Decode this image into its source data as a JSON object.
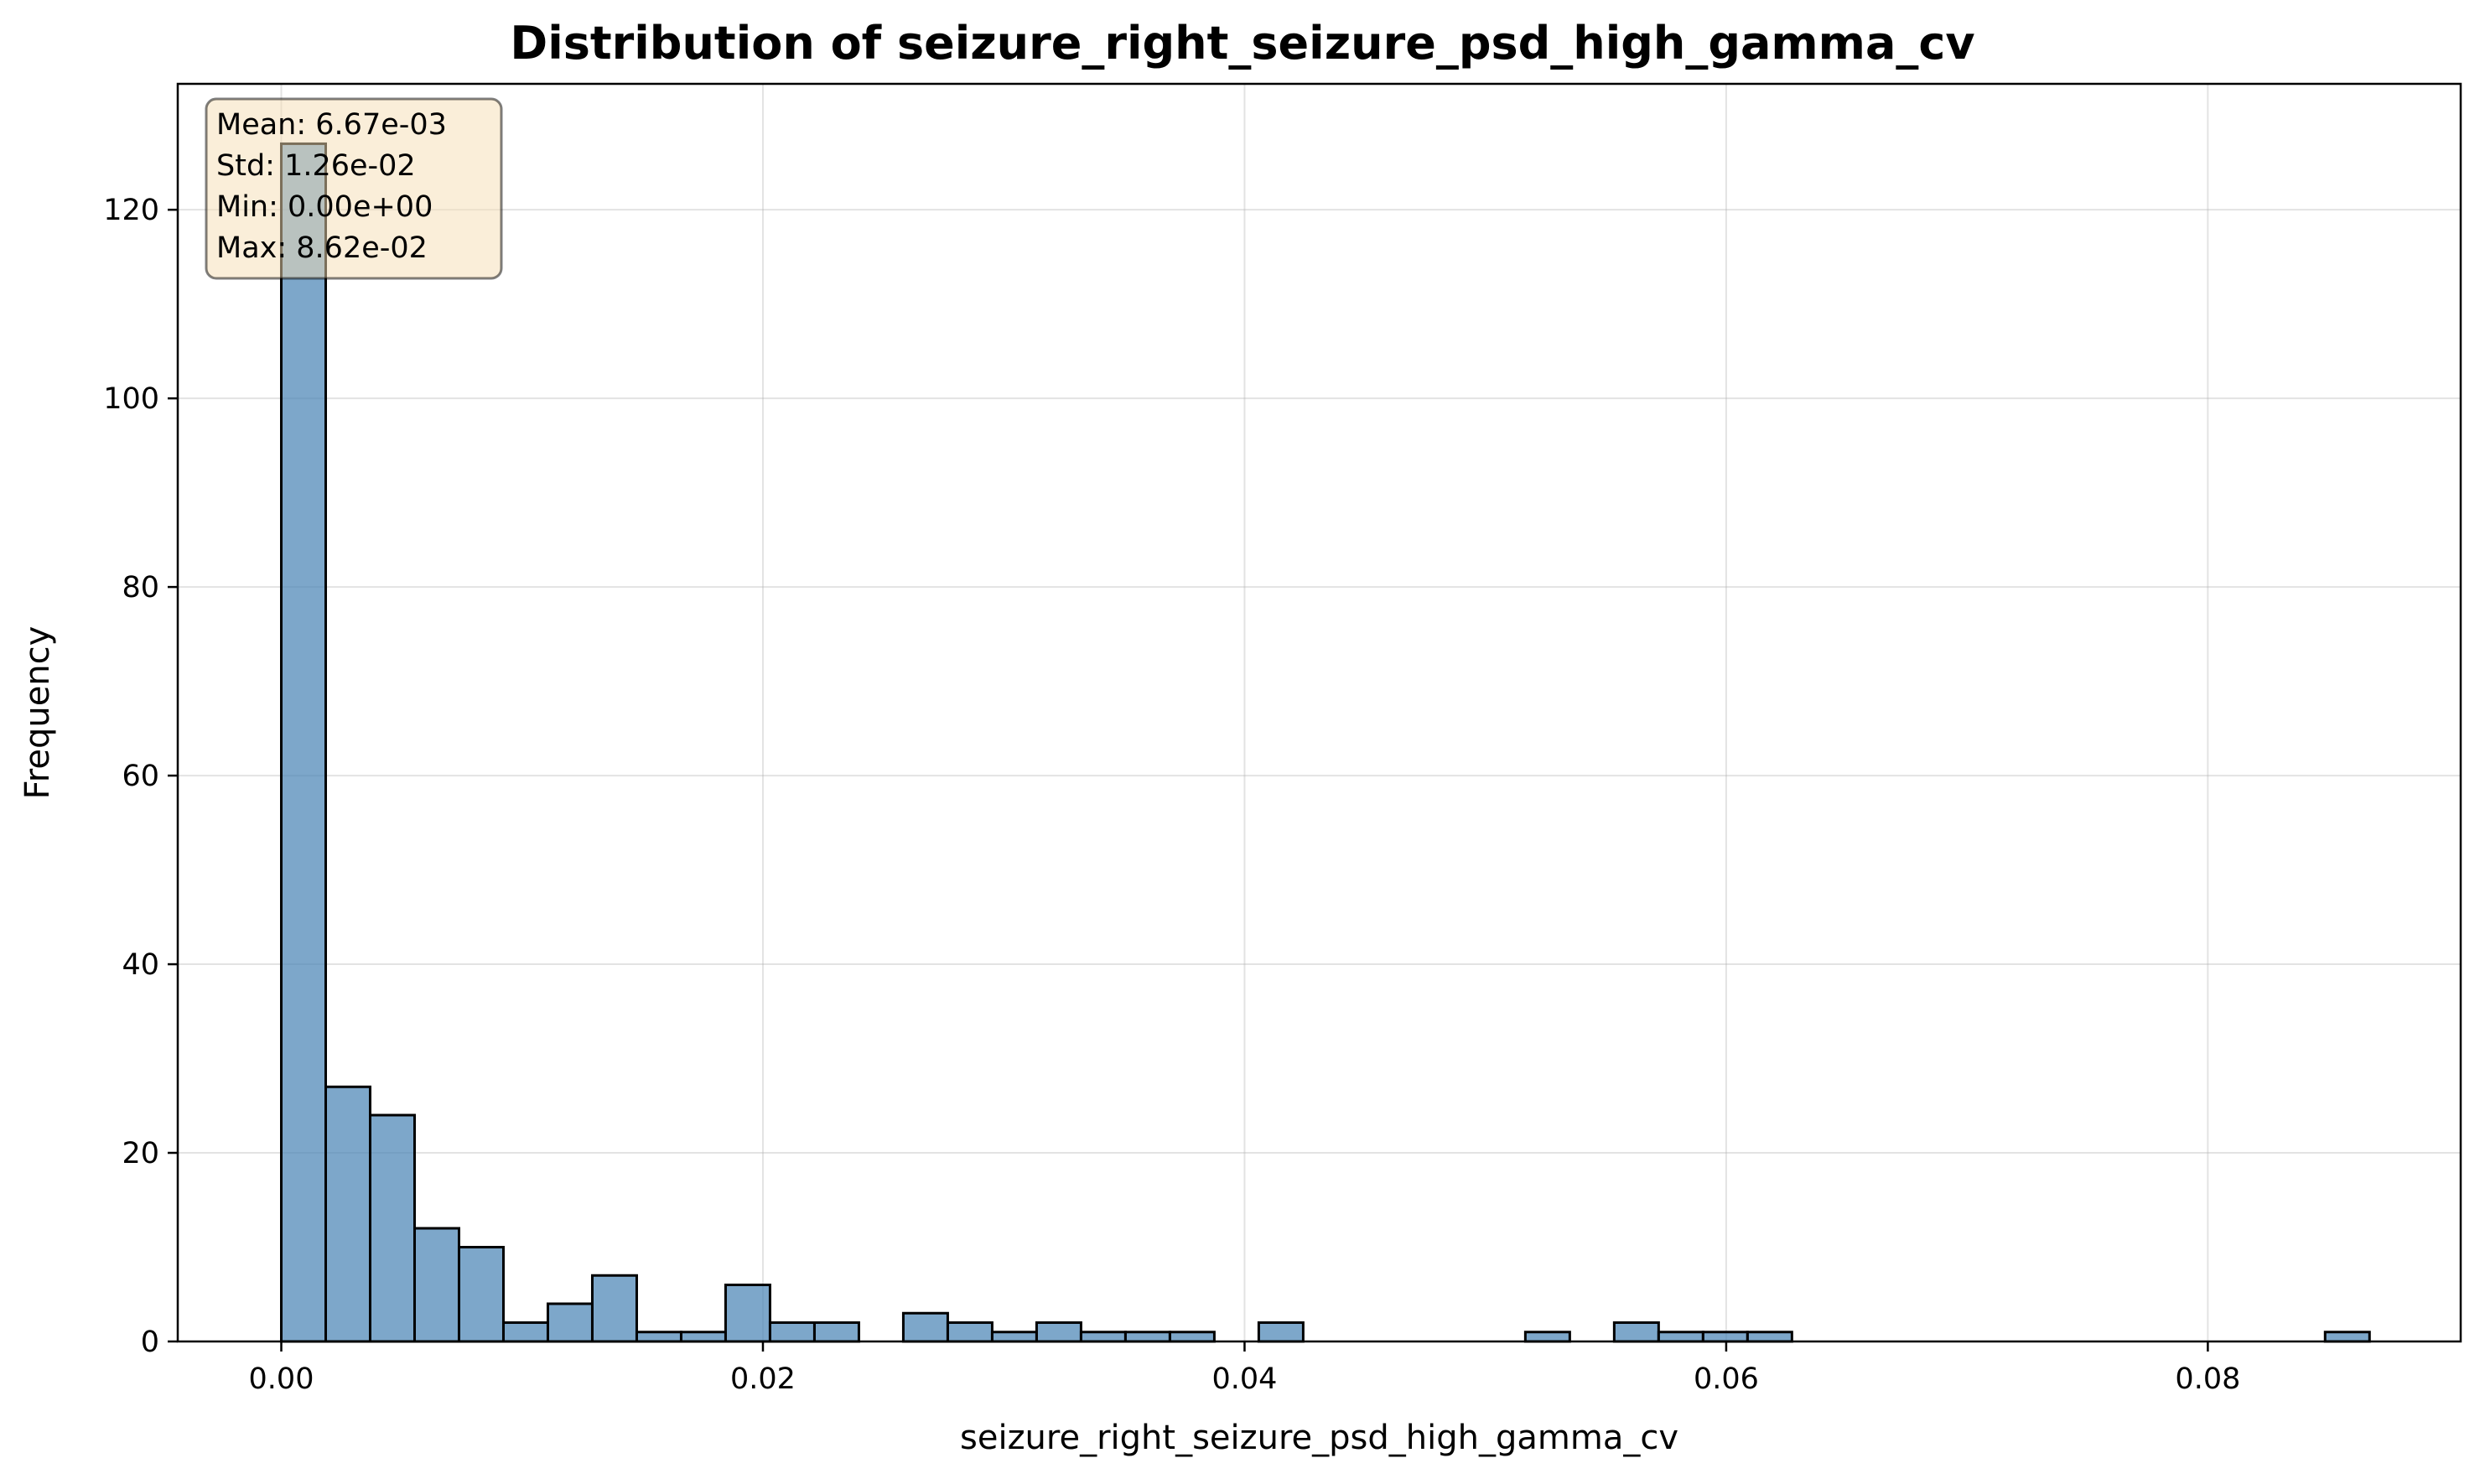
{
  "chart_data": {
    "type": "bar",
    "title": "Distribution of seizure_right_seizure_psd_high_gamma_cv",
    "xlabel": "seizure_right_seizure_psd_high_gamma_cv",
    "ylabel": "Frequency",
    "xlim": [
      -0.0043,
      0.0905
    ],
    "ylim": [
      0,
      133.35
    ],
    "grid": true,
    "bin_width": 0.001845,
    "bin_start": 0.0,
    "counts": [
      127,
      27,
      24,
      12,
      10,
      2,
      4,
      7,
      1,
      1,
      6,
      2,
      2,
      0,
      3,
      2,
      1,
      2,
      1,
      1,
      1,
      0,
      2,
      0,
      0,
      0,
      0,
      0,
      1,
      0,
      2,
      1,
      1,
      1,
      0,
      0,
      0,
      0,
      0,
      0,
      0,
      0,
      0,
      0,
      0,
      0,
      1
    ],
    "xticks": [
      {
        "value": 0.0,
        "label": "0.00"
      },
      {
        "value": 0.02,
        "label": "0.02"
      },
      {
        "value": 0.04,
        "label": "0.04"
      },
      {
        "value": 0.06,
        "label": "0.06"
      },
      {
        "value": 0.08,
        "label": "0.08"
      }
    ],
    "yticks": [
      {
        "value": 0,
        "label": "0"
      },
      {
        "value": 20,
        "label": "20"
      },
      {
        "value": 40,
        "label": "40"
      },
      {
        "value": 60,
        "label": "60"
      },
      {
        "value": 80,
        "label": "80"
      },
      {
        "value": 100,
        "label": "100"
      },
      {
        "value": 120,
        "label": "120"
      }
    ],
    "stats": [
      "Mean: 6.67e-03",
      "Std: 1.26e-02",
      "Min: 0.00e+00",
      "Max: 8.62e-02"
    ],
    "colors": {
      "bar_fill": "#4682b4",
      "bar_edge": "#000000",
      "grid": "#b0b0b0",
      "stats_box_fill": "#f5deb3",
      "stats_box_edge": "#000000"
    }
  }
}
